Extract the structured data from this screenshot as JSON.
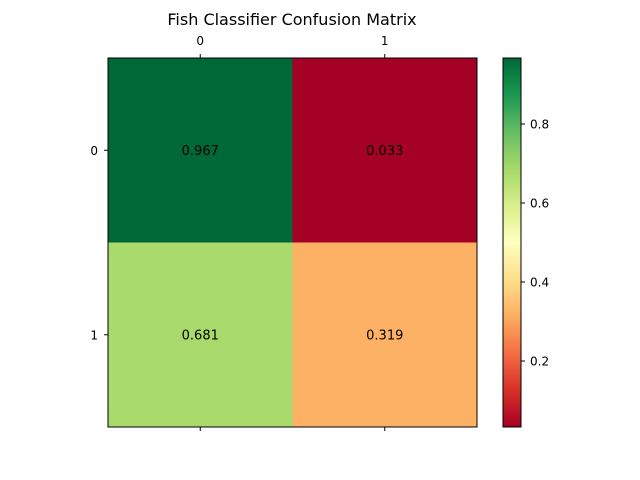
{
  "chart_data": {
    "type": "heatmap",
    "title": "Fish Classifier Confusion Matrix",
    "xlabel": "",
    "ylabel": "",
    "x_tick_labels": [
      "0",
      "1"
    ],
    "y_tick_labels": [
      "0",
      "1"
    ],
    "x_ticks_position": "top",
    "values": [
      [
        0.967,
        0.033
      ],
      [
        0.681,
        0.319
      ]
    ],
    "cell_labels": [
      [
        "0.967",
        "0.033"
      ],
      [
        "0.681",
        "0.319"
      ]
    ],
    "colormap": "RdYlGn",
    "colorbar": {
      "min": 0.033,
      "max": 0.967,
      "ticks": [
        0.2,
        0.4,
        0.6,
        0.8
      ],
      "tick_labels": [
        "0.2",
        "0.4",
        "0.6",
        "0.8"
      ],
      "placement": "right"
    },
    "colormap_stops": [
      "#a50026",
      "#d73027",
      "#f46d43",
      "#fdae61",
      "#fee08b",
      "#ffffbf",
      "#d9ef8b",
      "#a6d96a",
      "#66bd63",
      "#1a9850",
      "#006837"
    ],
    "grid": false
  }
}
